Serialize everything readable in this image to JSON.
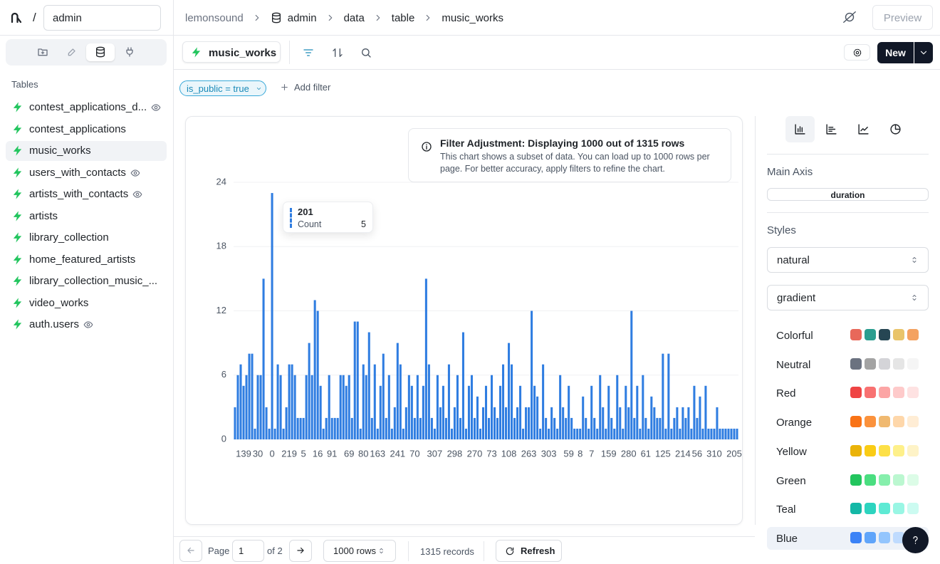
{
  "header": {
    "workspace": "admin",
    "breadcrumb": [
      "lemonsound",
      "admin",
      "data",
      "table",
      "music_works"
    ],
    "preview": "Preview"
  },
  "sidebar": {
    "section": "Tables",
    "tables": [
      "contest_applications_d...",
      "contest_applications",
      "music_works",
      "users_with_contacts",
      "artists_with_contacts",
      "artists",
      "library_collection",
      "home_featured_artists",
      "library_collection_music_...",
      "video_works",
      "auth.users"
    ]
  },
  "toolbar": {
    "table": "music_works",
    "new": "New"
  },
  "filters": {
    "chips": [
      "is_public = true"
    ],
    "add": "Add filter"
  },
  "notice": {
    "title": "Filter Adjustment: Displaying 1000 out of 1315 rows",
    "text": "This chart shows a subset of data. You can load up to 1000 rows per page. For better accuracy, apply filters to refine the chart."
  },
  "chart_data": {
    "type": "bar",
    "color": "#2f7de1",
    "grid": true,
    "ylim": [
      0,
      24
    ],
    "yticks": [
      0,
      6,
      12,
      18,
      24
    ],
    "categories": [
      null,
      null,
      null,
      "139",
      null,
      null,
      null,
      null,
      "30",
      null,
      null,
      null,
      null,
      "0",
      null,
      null,
      null,
      null,
      null,
      "219",
      null,
      null,
      null,
      null,
      "5",
      null,
      null,
      null,
      null,
      "16",
      null,
      null,
      null,
      null,
      "91",
      null,
      null,
      null,
      null,
      null,
      "69",
      null,
      null,
      null,
      null,
      "80",
      null,
      null,
      null,
      null,
      "163",
      null,
      null,
      null,
      null,
      null,
      null,
      "241",
      null,
      null,
      null,
      null,
      null,
      "70",
      null,
      null,
      null,
      null,
      null,
      null,
      "307",
      null,
      null,
      null,
      null,
      null,
      null,
      "298",
      null,
      null,
      null,
      null,
      null,
      null,
      "270",
      null,
      null,
      null,
      null,
      null,
      "73",
      null,
      null,
      null,
      null,
      null,
      "108",
      null,
      null,
      null,
      null,
      null,
      null,
      "263",
      null,
      null,
      null,
      null,
      null,
      null,
      "303",
      null,
      null,
      null,
      null,
      null,
      null,
      "59",
      null,
      null,
      null,
      "8",
      null,
      null,
      null,
      "7",
      null,
      null,
      null,
      null,
      null,
      "159",
      null,
      null,
      null,
      null,
      null,
      null,
      "280",
      null,
      null,
      null,
      null,
      null,
      "61",
      null,
      null,
      null,
      null,
      null,
      "125",
      null,
      null,
      null,
      null,
      null,
      null,
      "214",
      null,
      null,
      null,
      null,
      "56",
      null,
      null,
      null,
      null,
      null,
      "310",
      null,
      null,
      null,
      null,
      null,
      null,
      "205",
      null
    ],
    "values": [
      3,
      6,
      7,
      5,
      6,
      8,
      8,
      1,
      6,
      6,
      15,
      3,
      1,
      23,
      1,
      7,
      6,
      1,
      3,
      7,
      7,
      6,
      2,
      2,
      2,
      6,
      9,
      6,
      13,
      12,
      5,
      1,
      2,
      6,
      2,
      2,
      2,
      6,
      6,
      5,
      6,
      2,
      11,
      11,
      1,
      7,
      6,
      10,
      2,
      7,
      1,
      5,
      8,
      2,
      6,
      1,
      3,
      9,
      7,
      1,
      3,
      6,
      5,
      2,
      6,
      2,
      5,
      15,
      7,
      2,
      1,
      6,
      3,
      5,
      2,
      7,
      1,
      3,
      6,
      2,
      10,
      1,
      5,
      6,
      2,
      4,
      1,
      3,
      5,
      2,
      6,
      3,
      2,
      5,
      7,
      3,
      9,
      7,
      2,
      3,
      5,
      1,
      3,
      3,
      12,
      5,
      4,
      1,
      7,
      2,
      1,
      3,
      2,
      1,
      6,
      3,
      2,
      5,
      2,
      1,
      1,
      1,
      4,
      2,
      1,
      5,
      2,
      1,
      6,
      3,
      1,
      5,
      2,
      1,
      6,
      3,
      1,
      5,
      3,
      12,
      2,
      5,
      1,
      6,
      2,
      1,
      4,
      3,
      2,
      2,
      8,
      1,
      8,
      1,
      2,
      3,
      1,
      3,
      2,
      3,
      1,
      5,
      2,
      4,
      1,
      5,
      1,
      1,
      1,
      3,
      1,
      1,
      1,
      1,
      1,
      1,
      1
    ],
    "tooltip": {
      "label": "201",
      "name": "Count",
      "value": 5
    }
  },
  "settings": {
    "main_axis_label": "Main Axis",
    "main_axis": "duration",
    "styles_label": "Styles",
    "curve": "natural",
    "fill": "gradient",
    "palettes": [
      {
        "name": "Colorful",
        "colors": [
          "#e8685a",
          "#2a9d8f",
          "#264653",
          "#e9c46a",
          "#f4a261"
        ]
      },
      {
        "name": "Neutral",
        "colors": [
          "#6b7280",
          "#a3a3a3",
          "#d4d4d8",
          "#e5e5e5",
          "#f5f5f5"
        ]
      },
      {
        "name": "Red",
        "colors": [
          "#ef4444",
          "#f87171",
          "#fca5a5",
          "#fecaca",
          "#fee2e2"
        ]
      },
      {
        "name": "Orange",
        "colors": [
          "#f97316",
          "#fb923c",
          "#f0b970",
          "#fed7aa",
          "#ffedd5"
        ]
      },
      {
        "name": "Yellow",
        "colors": [
          "#eab308",
          "#facc15",
          "#fde047",
          "#fef08a",
          "#fef3c7"
        ]
      },
      {
        "name": "Green",
        "colors": [
          "#22c55e",
          "#4ade80",
          "#86efac",
          "#bbf7d0",
          "#dcfce7"
        ]
      },
      {
        "name": "Teal",
        "colors": [
          "#14b8a6",
          "#2dd4bf",
          "#5eead4",
          "#99f6e4",
          "#ccfbf1"
        ]
      },
      {
        "name": "Blue",
        "colors": [
          "#3b82f6",
          "#60a5fa",
          "#93c5fd",
          "#bfdbfe",
          "#dbeafe"
        ]
      }
    ]
  },
  "footer": {
    "page_label": "Page",
    "page": "1",
    "of": "of 2",
    "rows": "1000 rows",
    "records": "1315 records",
    "refresh": "Refresh"
  }
}
